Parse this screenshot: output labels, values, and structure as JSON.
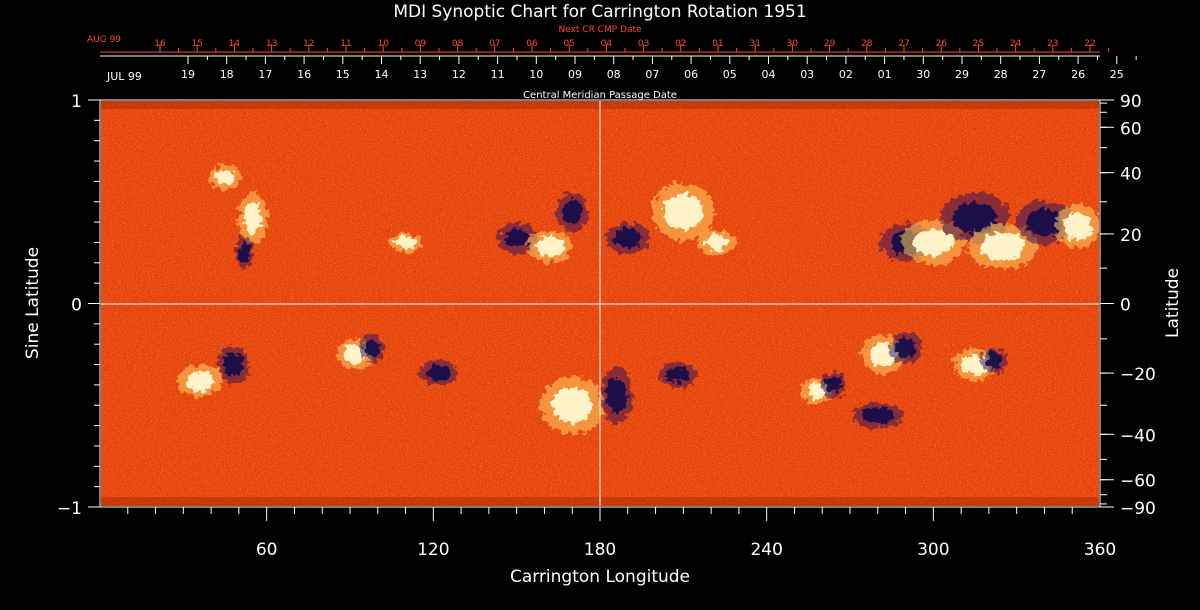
{
  "chart_data": {
    "type": "heatmap",
    "title": "MDI Synoptic Chart for Carrington Rotation 1951",
    "xlabel": "Carrington Longitude",
    "ylabel_left": "Sine Latitude",
    "ylabel_right": "Latitude",
    "xlim": [
      0,
      360
    ],
    "ylim_sine": [
      -1,
      1
    ],
    "x_ticks": [
      "60",
      "120",
      "180",
      "240",
      "300",
      "360"
    ],
    "x_tick_values": [
      60,
      120,
      180,
      240,
      300,
      360
    ],
    "y_left_ticks": [
      "1",
      "0",
      "−1"
    ],
    "y_left_tick_values": [
      1,
      0,
      -1
    ],
    "y_right_ticks": [
      "90",
      "60",
      "40",
      "20",
      "0",
      "−20",
      "−40",
      "−60",
      "−90"
    ],
    "y_right_tick_values": [
      90,
      60,
      40,
      20,
      0,
      -20,
      -40,
      -60,
      -90
    ],
    "top_axis": {
      "label": "Central Meridian Passage Date",
      "month_label": "JUL 99",
      "dates": [
        "19",
        "18",
        "17",
        "16",
        "15",
        "14",
        "13",
        "12",
        "11",
        "10",
        "09",
        "08",
        "07",
        "06",
        "05",
        "04",
        "03",
        "02",
        "01",
        "30",
        "29",
        "28",
        "27",
        "26",
        "25"
      ]
    },
    "top_axis_next": {
      "label": "Next CR CMP Date",
      "month_label": "AUG 99",
      "dates": [
        "16",
        "15",
        "14",
        "13",
        "12",
        "11",
        "10",
        "09",
        "08",
        "07",
        "06",
        "05",
        "04",
        "03",
        "02",
        "01",
        "31",
        "30",
        "29",
        "28",
        "27",
        "26",
        "25",
        "24",
        "23",
        "22"
      ]
    },
    "reference_lines": {
      "longitude": 180,
      "sine_latitude": 0
    },
    "colormap": [
      "#10104a",
      "#c83000",
      "#ff5a1e",
      "#ffffe0"
    ],
    "active_regions": [
      {
        "lon": 55,
        "slat": 0.42,
        "a": 9,
        "b": 16,
        "pol": 1
      },
      {
        "lon": 52,
        "slat": 0.25,
        "a": 6,
        "b": 10,
        "pol": -1
      },
      {
        "lon": 45,
        "slat": 0.62,
        "a": 10,
        "b": 8,
        "pol": 1
      },
      {
        "lon": 110,
        "slat": 0.3,
        "a": 10,
        "b": 6,
        "pol": 1
      },
      {
        "lon": 150,
        "slat": 0.32,
        "a": 12,
        "b": 10,
        "pol": -1
      },
      {
        "lon": 162,
        "slat": 0.28,
        "a": 14,
        "b": 10,
        "pol": 1
      },
      {
        "lon": 170,
        "slat": 0.45,
        "a": 10,
        "b": 12,
        "pol": -1
      },
      {
        "lon": 190,
        "slat": 0.32,
        "a": 14,
        "b": 10,
        "pol": -1
      },
      {
        "lon": 210,
        "slat": 0.45,
        "a": 20,
        "b": 18,
        "pol": 1
      },
      {
        "lon": 222,
        "slat": 0.3,
        "a": 12,
        "b": 8,
        "pol": 1
      },
      {
        "lon": 290,
        "slat": 0.3,
        "a": 16,
        "b": 12,
        "pol": -1
      },
      {
        "lon": 300,
        "slat": 0.3,
        "a": 20,
        "b": 14,
        "pol": 1
      },
      {
        "lon": 315,
        "slat": 0.42,
        "a": 22,
        "b": 16,
        "pol": -1
      },
      {
        "lon": 325,
        "slat": 0.28,
        "a": 22,
        "b": 14,
        "pol": 1
      },
      {
        "lon": 340,
        "slat": 0.4,
        "a": 18,
        "b": 14,
        "pol": -1
      },
      {
        "lon": 352,
        "slat": 0.38,
        "a": 14,
        "b": 14,
        "pol": 1
      },
      {
        "lon": 48,
        "slat": -0.3,
        "a": 10,
        "b": 12,
        "pol": -1
      },
      {
        "lon": 36,
        "slat": -0.38,
        "a": 14,
        "b": 10,
        "pol": 1
      },
      {
        "lon": 92,
        "slat": -0.25,
        "a": 12,
        "b": 10,
        "pol": 1
      },
      {
        "lon": 98,
        "slat": -0.22,
        "a": 8,
        "b": 8,
        "pol": -1
      },
      {
        "lon": 122,
        "slat": -0.34,
        "a": 12,
        "b": 8,
        "pol": -1
      },
      {
        "lon": 170,
        "slat": -0.5,
        "a": 20,
        "b": 18,
        "pol": 1
      },
      {
        "lon": 186,
        "slat": -0.45,
        "a": 10,
        "b": 18,
        "pol": -1
      },
      {
        "lon": 208,
        "slat": -0.35,
        "a": 12,
        "b": 8,
        "pol": -1
      },
      {
        "lon": 258,
        "slat": -0.43,
        "a": 10,
        "b": 8,
        "pol": 1
      },
      {
        "lon": 264,
        "slat": -0.4,
        "a": 8,
        "b": 8,
        "pol": -1
      },
      {
        "lon": 282,
        "slat": -0.25,
        "a": 14,
        "b": 12,
        "pol": 1
      },
      {
        "lon": 290,
        "slat": -0.22,
        "a": 10,
        "b": 10,
        "pol": -1
      },
      {
        "lon": 315,
        "slat": -0.3,
        "a": 14,
        "b": 10,
        "pol": 1
      },
      {
        "lon": 322,
        "slat": -0.28,
        "a": 8,
        "b": 8,
        "pol": -1
      },
      {
        "lon": 280,
        "slat": -0.55,
        "a": 16,
        "b": 8,
        "pol": -1
      }
    ]
  }
}
